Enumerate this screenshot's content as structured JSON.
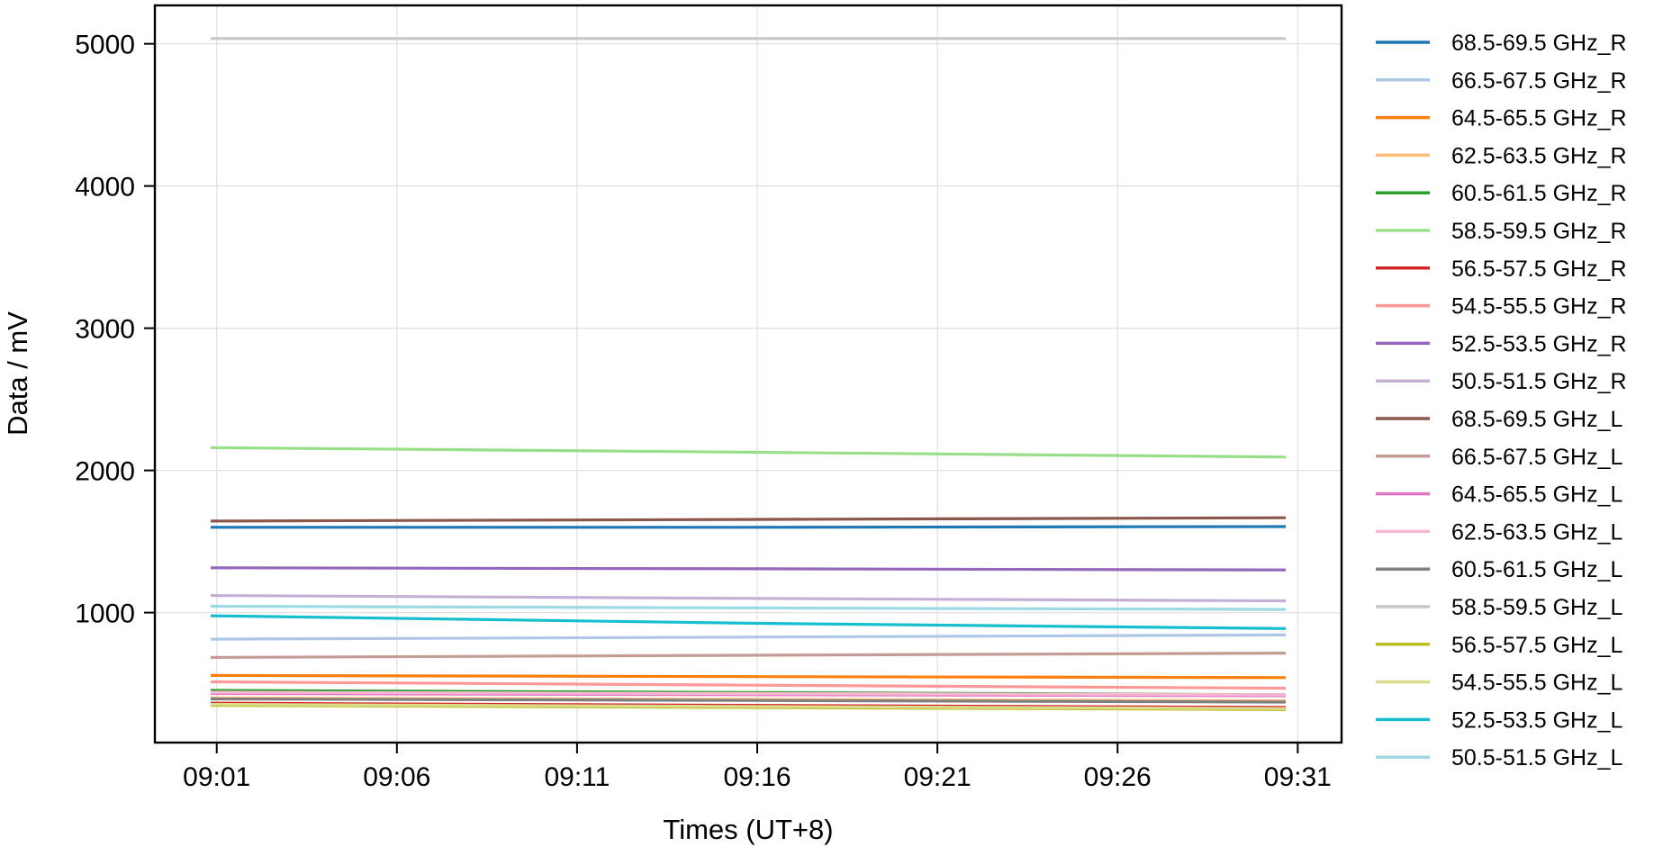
{
  "chart_data": {
    "type": "line",
    "title": "",
    "xlabel": "Times (UT+8)",
    "ylabel": "Data / mV",
    "xlim": [
      "08:59:17",
      "09:32:13"
    ],
    "ylim": [
      86,
      5270
    ],
    "x_ticks": [
      "09:01",
      "09:06",
      "09:11",
      "09:16",
      "09:21",
      "09:26",
      "09:31"
    ],
    "y_ticks": [
      1000,
      2000,
      3000,
      4000,
      5000
    ],
    "grid": true,
    "legend_placement": "outside-right",
    "x_range": [
      "09:00:50",
      "09:30:40"
    ],
    "series": [
      {
        "name": "68.5-69.5 GHz_R",
        "color": "#1f77b4",
        "values": [
          1600,
          1600,
          1605
        ]
      },
      {
        "name": "66.5-67.5 GHz_R",
        "color": "#aec7e8",
        "values": [
          813,
          828,
          843
        ]
      },
      {
        "name": "64.5-65.5 GHz_R",
        "color": "#ff7f0e",
        "values": [
          558,
          550,
          543
        ]
      },
      {
        "name": "62.5-63.5 GHz_R",
        "color": "#ffbb78",
        "values": [
          400,
          390,
          380
        ]
      },
      {
        "name": "60.5-61.5 GHz_R",
        "color": "#2ca02c",
        "values": [
          453,
          438,
          423
        ]
      },
      {
        "name": "58.5-59.5 GHz_R",
        "color": "#98df8a",
        "values": [
          2160,
          2128,
          2094
        ]
      },
      {
        "name": "56.5-57.5 GHz_R",
        "color": "#d62728",
        "values": [
          363,
          348,
          333
        ]
      },
      {
        "name": "54.5-55.5 GHz_R",
        "color": "#ff9896",
        "values": [
          513,
          490,
          468
        ]
      },
      {
        "name": "52.5-53.5 GHz_R",
        "color": "#9467bd",
        "values": [
          1315,
          1308,
          1300
        ]
      },
      {
        "name": "50.5-51.5 GHz_R",
        "color": "#c5b0d5",
        "values": [
          1120,
          1100,
          1082
        ]
      },
      {
        "name": "68.5-69.5 GHz_L",
        "color": "#8c564b",
        "values": [
          1644,
          1655,
          1667
        ]
      },
      {
        "name": "66.5-67.5 GHz_L",
        "color": "#c49c94",
        "values": [
          685,
          700,
          715
        ]
      },
      {
        "name": "64.5-65.5 GHz_L",
        "color": "#e377c2",
        "values": [
          431,
          423,
          416
        ]
      },
      {
        "name": "62.5-63.5 GHz_L",
        "color": "#f7b6d2",
        "values": [
          440,
          431,
          423
        ]
      },
      {
        "name": "60.5-61.5 GHz_L",
        "color": "#7f7f7f",
        "values": [
          393,
          382,
          371
        ]
      },
      {
        "name": "58.5-59.5 GHz_L",
        "color": "#c7c7c7",
        "values": [
          5037,
          5037,
          5037
        ]
      },
      {
        "name": "56.5-57.5 GHz_L",
        "color": "#bcbd22",
        "values": [
          348,
          333,
          318
        ]
      },
      {
        "name": "54.5-55.5 GHz_L",
        "color": "#dbdb8d",
        "values": [
          355,
          340,
          325
        ]
      },
      {
        "name": "52.5-53.5 GHz_L",
        "color": "#17becf",
        "values": [
          978,
          925,
          888
        ]
      },
      {
        "name": "50.5-51.5 GHz_L",
        "color": "#9edae5",
        "values": [
          1045,
          1033,
          1022
        ]
      }
    ]
  }
}
